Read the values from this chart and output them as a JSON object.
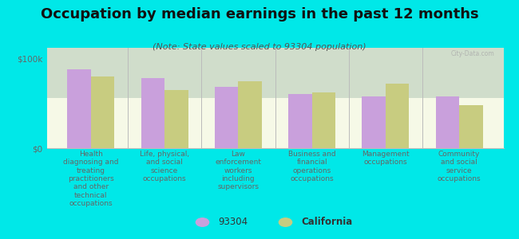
{
  "title": "Occupation by median earnings in the past 12 months",
  "subtitle": "(Note: State values scaled to 93304 population)",
  "background_color": "#00e8e8",
  "plot_bg_top": "#f5f8e8",
  "plot_bg_bottom": "#e8efc8",
  "categories": [
    "Health\ndiagnosing and\ntreating\npractitioners\nand other\ntechnical\noccupations",
    "Life, physical,\nand social\nscience\noccupations",
    "Law\nenforcement\nworkers\nincluding\nsupervisors",
    "Business and\nfinancial\noperations\noccupations",
    "Management\noccupations",
    "Community\nand social\nservice\noccupations"
  ],
  "values_93304": [
    88000,
    78000,
    68000,
    60000,
    58000,
    58000
  ],
  "values_california": [
    80000,
    65000,
    75000,
    62000,
    72000,
    48000
  ],
  "color_93304": "#c9a0dc",
  "color_california": "#c8cc80",
  "ylabel_ticks": [
    "$0",
    "$100k"
  ],
  "ytick_values": [
    0,
    100000
  ],
  "ylim": [
    0,
    112000
  ],
  "legend_93304": "93304",
  "legend_california": "California",
  "watermark": "City-Data.com",
  "title_color": "#111111",
  "subtitle_color": "#555555",
  "tick_color": "#666666",
  "divider_color": "#bbbbbb",
  "title_fontsize": 13,
  "subtitle_fontsize": 8,
  "tick_fontsize": 7.5,
  "xlabel_fontsize": 6.5
}
